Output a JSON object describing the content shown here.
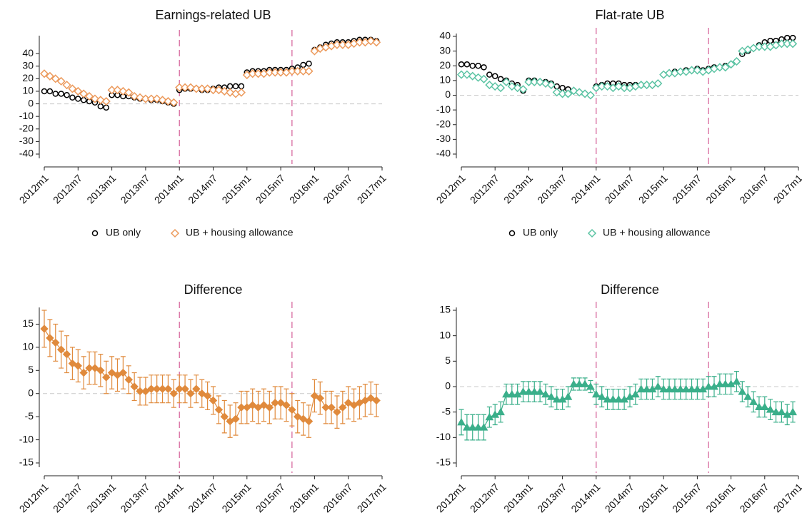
{
  "chart_data": [
    {
      "type": "scatter",
      "title": "Earnings-related UB",
      "legend": "bottom",
      "zero_line": 0,
      "vlines": [
        24,
        44
      ],
      "xlim": [
        0,
        60
      ],
      "xticks": [
        {
          "value": 0,
          "label": "2012m1"
        },
        {
          "value": 6,
          "label": "2012m7"
        },
        {
          "value": 12,
          "label": "2013m1"
        },
        {
          "value": 18,
          "label": "2013m7"
        },
        {
          "value": 24,
          "label": "2014m1"
        },
        {
          "value": 30,
          "label": "2014m7"
        },
        {
          "value": 36,
          "label": "2015m1"
        },
        {
          "value": 42,
          "label": "2015m7"
        },
        {
          "value": 48,
          "label": "2016m1"
        },
        {
          "value": 54,
          "label": "2016m7"
        },
        {
          "value": 60,
          "label": "2017m1"
        }
      ],
      "ylim": [
        -40,
        52
      ],
      "yticks": [
        -40,
        -30,
        -20,
        -10,
        0,
        10,
        20,
        30,
        40
      ],
      "x": [
        0,
        1,
        2,
        3,
        4,
        5,
        6,
        7,
        8,
        9,
        10,
        11,
        12,
        13,
        14,
        15,
        16,
        17,
        18,
        19,
        20,
        21,
        22,
        23,
        24,
        25,
        26,
        27,
        28,
        29,
        30,
        31,
        32,
        33,
        34,
        35,
        36,
        37,
        38,
        39,
        40,
        41,
        42,
        43,
        44,
        45,
        46,
        47,
        48,
        49,
        50,
        51,
        52,
        53,
        54,
        55,
        56,
        57,
        58,
        59
      ],
      "series": [
        {
          "name": "UB only",
          "color": "#000000",
          "marker": "circle",
          "filled": false,
          "values": [
            10,
            10,
            8,
            8,
            7,
            5,
            4,
            3,
            2,
            1,
            -2,
            -3,
            7,
            7,
            6,
            6,
            5,
            4,
            4,
            3,
            3,
            2,
            1,
            0,
            11,
            12,
            12,
            12,
            11,
            11,
            12,
            13,
            13,
            14,
            14,
            14,
            25,
            26,
            26,
            26,
            27,
            27,
            27,
            27,
            28,
            29,
            31,
            32,
            43,
            45,
            47,
            48,
            49,
            49,
            49,
            50,
            51,
            51,
            51,
            50
          ]
        },
        {
          "name": "UB + housing allowance",
          "color": "#ec9a5c",
          "marker": "diamond",
          "filled": false,
          "values": [
            24,
            22,
            20,
            18,
            15,
            12,
            10,
            8,
            6,
            4,
            3,
            2,
            11,
            11,
            10,
            9,
            6,
            5,
            4,
            4,
            4,
            3,
            2,
            1,
            13,
            13,
            13,
            12,
            12,
            12,
            11,
            11,
            10,
            9,
            8,
            9,
            23,
            24,
            24,
            24,
            25,
            25,
            25,
            25,
            26,
            26,
            26,
            26,
            42,
            44,
            45,
            46,
            47,
            47,
            47,
            48,
            49,
            49,
            50,
            49
          ]
        }
      ]
    },
    {
      "type": "scatter",
      "title": "Flat-rate UB",
      "legend": "bottom",
      "zero_line": 0,
      "vlines": [
        24,
        44
      ],
      "xlim": [
        0,
        60
      ],
      "xticks": [
        {
          "value": 0,
          "label": "2012m1"
        },
        {
          "value": 6,
          "label": "2012m7"
        },
        {
          "value": 12,
          "label": "2013m1"
        },
        {
          "value": 18,
          "label": "2013m7"
        },
        {
          "value": 24,
          "label": "2014m1"
        },
        {
          "value": 30,
          "label": "2014m7"
        },
        {
          "value": 36,
          "label": "2015m1"
        },
        {
          "value": 42,
          "label": "2015m7"
        },
        {
          "value": 48,
          "label": "2016m1"
        },
        {
          "value": 54,
          "label": "2016m7"
        },
        {
          "value": 60,
          "label": "2017m1"
        }
      ],
      "ylim": [
        -40,
        40
      ],
      "yticks": [
        -40,
        -30,
        -20,
        -10,
        0,
        10,
        20,
        30,
        40
      ],
      "x": [
        0,
        1,
        2,
        3,
        4,
        5,
        6,
        7,
        8,
        9,
        10,
        11,
        12,
        13,
        14,
        15,
        16,
        17,
        18,
        19,
        20,
        21,
        22,
        23,
        24,
        25,
        26,
        27,
        28,
        29,
        30,
        31,
        32,
        33,
        34,
        35,
        36,
        37,
        38,
        39,
        40,
        41,
        42,
        43,
        44,
        45,
        46,
        47,
        48,
        49,
        50,
        51,
        52,
        53,
        54,
        55,
        56,
        57,
        58,
        59
      ],
      "series": [
        {
          "name": "UB only",
          "color": "#000000",
          "marker": "circle",
          "filled": false,
          "values": [
            21,
            21,
            20,
            20,
            19,
            14,
            13,
            11,
            10,
            8,
            7,
            3,
            10,
            10,
            9,
            9,
            8,
            6,
            5,
            4,
            3,
            2,
            1,
            0,
            6,
            7,
            8,
            8,
            8,
            7,
            7,
            7,
            7,
            7,
            7,
            8,
            14,
            15,
            16,
            16,
            17,
            17,
            18,
            17,
            18,
            19,
            19,
            20,
            21,
            23,
            28,
            30,
            32,
            34,
            36,
            37,
            37,
            38,
            39,
            39
          ]
        },
        {
          "name": "UB + housing allowance",
          "color": "#5cc4a4",
          "marker": "diamond",
          "filled": false,
          "values": [
            14,
            14,
            13,
            12,
            11,
            7,
            6,
            5,
            9,
            6,
            5,
            4,
            9,
            9,
            9,
            8,
            7,
            2,
            1,
            1,
            3,
            2,
            1,
            0,
            5,
            6,
            6,
            5,
            6,
            5,
            5,
            6,
            7,
            7,
            7,
            8,
            14,
            15,
            15,
            16,
            16,
            17,
            17,
            16,
            17,
            18,
            19,
            19,
            21,
            23,
            30,
            31,
            32,
            33,
            33,
            33,
            34,
            35,
            35,
            35
          ]
        }
      ]
    },
    {
      "type": "errorbar",
      "title": "Difference",
      "zero_line": 0,
      "vlines": [
        24,
        44
      ],
      "xlim": [
        0,
        60
      ],
      "xticks": [
        {
          "value": 0,
          "label": "2012m1"
        },
        {
          "value": 6,
          "label": "2012m7"
        },
        {
          "value": 12,
          "label": "2013m1"
        },
        {
          "value": 18,
          "label": "2013m7"
        },
        {
          "value": 24,
          "label": "2014m1"
        },
        {
          "value": 30,
          "label": "2014m7"
        },
        {
          "value": 36,
          "label": "2015m1"
        },
        {
          "value": 42,
          "label": "2015m7"
        },
        {
          "value": 48,
          "label": "2016m1"
        },
        {
          "value": 54,
          "label": "2016m7"
        },
        {
          "value": 60,
          "label": "2017m1"
        }
      ],
      "ylim": [
        -15,
        18
      ],
      "yticks": [
        -15,
        -10,
        -5,
        0,
        5,
        10,
        15
      ],
      "x": [
        0,
        1,
        2,
        3,
        4,
        5,
        6,
        7,
        8,
        9,
        10,
        11,
        12,
        13,
        14,
        15,
        16,
        17,
        18,
        19,
        20,
        21,
        22,
        23,
        24,
        25,
        26,
        27,
        28,
        29,
        30,
        31,
        32,
        33,
        34,
        35,
        36,
        37,
        38,
        39,
        40,
        41,
        42,
        43,
        44,
        45,
        46,
        47,
        48,
        49,
        50,
        51,
        52,
        53,
        54,
        55,
        56,
        57,
        58,
        59
      ],
      "series": [
        {
          "color": "#e08a3c",
          "marker": "diamond",
          "filled": true,
          "values": [
            14,
            12,
            11,
            9.5,
            8.5,
            6.5,
            6,
            4.5,
            5.5,
            5.5,
            5,
            3.5,
            4.5,
            4,
            4.5,
            3,
            1.5,
            0.5,
            0.5,
            1,
            1,
            1,
            1,
            0,
            1,
            1,
            0,
            1,
            0,
            -0.5,
            -1.5,
            -3.5,
            -5,
            -6,
            -5.5,
            -3,
            -3,
            -2.5,
            -3,
            -2.5,
            -3,
            -2,
            -2,
            -2.5,
            -3.5,
            -5,
            -5.5,
            -6,
            -0.5,
            -1,
            -3,
            -3,
            -4,
            -3,
            -2,
            -2.5,
            -2,
            -1.5,
            -1,
            -1.5
          ],
          "errors": [
            4,
            4,
            4,
            4,
            4,
            3.5,
            3.5,
            3.5,
            3.5,
            3.5,
            3.5,
            3.5,
            3.5,
            3.5,
            3.5,
            3,
            3,
            3,
            3,
            3,
            3,
            3,
            3,
            3,
            3,
            3,
            3,
            3,
            3,
            3,
            3,
            3,
            3.5,
            3.5,
            3.5,
            3.5,
            3.5,
            3.5,
            3.5,
            3.5,
            3.5,
            3.5,
            3.5,
            3.5,
            3.5,
            3.5,
            3.5,
            3.5,
            3.5,
            3.5,
            3.5,
            3.5,
            3.5,
            3.5,
            3.5,
            3.5,
            3.5,
            3.5,
            3.5,
            3.5
          ]
        }
      ]
    },
    {
      "type": "errorbar",
      "title": "Difference",
      "zero_line": 0,
      "vlines": [
        24,
        44
      ],
      "xlim": [
        0,
        60
      ],
      "xticks": [
        {
          "value": 0,
          "label": "2012m1"
        },
        {
          "value": 6,
          "label": "2012m7"
        },
        {
          "value": 12,
          "label": "2013m1"
        },
        {
          "value": 18,
          "label": "2013m7"
        },
        {
          "value": 24,
          "label": "2014m1"
        },
        {
          "value": 30,
          "label": "2014m7"
        },
        {
          "value": 36,
          "label": "2015m1"
        },
        {
          "value": 42,
          "label": "2015m7"
        },
        {
          "value": 48,
          "label": "2016m1"
        },
        {
          "value": 54,
          "label": "2016m7"
        },
        {
          "value": 60,
          "label": "2017m1"
        }
      ],
      "ylim": [
        -15,
        15
      ],
      "yticks": [
        -15,
        -10,
        -5,
        0,
        5,
        10,
        15
      ],
      "x": [
        0,
        1,
        2,
        3,
        4,
        5,
        6,
        7,
        8,
        9,
        10,
        11,
        12,
        13,
        14,
        15,
        16,
        17,
        18,
        19,
        20,
        21,
        22,
        23,
        24,
        25,
        26,
        27,
        28,
        29,
        30,
        31,
        32,
        33,
        34,
        35,
        36,
        37,
        38,
        39,
        40,
        41,
        42,
        43,
        44,
        45,
        46,
        47,
        48,
        49,
        50,
        51,
        52,
        53,
        54,
        55,
        56,
        57,
        58,
        59
      ],
      "series": [
        {
          "color": "#3aaf8a",
          "marker": "triangle",
          "filled": true,
          "values": [
            -7,
            -8,
            -8,
            -8,
            -8,
            -6,
            -5.5,
            -5,
            -1.5,
            -1.5,
            -1.5,
            -1,
            -1,
            -1,
            -1,
            -1.5,
            -2,
            -2.5,
            -2.5,
            -2,
            0.5,
            0.5,
            0.5,
            0,
            -1.5,
            -2,
            -2.5,
            -2.5,
            -2.5,
            -2.5,
            -2,
            -1.5,
            -0.5,
            -0.5,
            -0.5,
            0,
            -0.5,
            -0.5,
            -0.5,
            -0.5,
            -0.5,
            -0.5,
            -0.5,
            -0.5,
            0,
            0,
            0.5,
            0.5,
            0.5,
            1,
            -1,
            -2,
            -3,
            -4,
            -4,
            -4.5,
            -5,
            -5,
            -5.5,
            -5
          ],
          "errors": [
            2.5,
            2.5,
            2.5,
            2.5,
            2.5,
            2,
            2,
            2,
            2,
            2,
            2,
            2,
            2,
            2,
            2,
            2,
            2,
            2,
            2,
            2,
            1.2,
            1.2,
            1.2,
            1.2,
            2,
            2,
            2,
            2,
            2,
            2,
            2,
            2,
            2,
            2,
            2,
            2,
            2,
            2,
            2,
            2,
            2,
            2,
            2,
            2,
            2,
            2,
            2,
            2,
            2,
            2,
            2,
            2,
            2,
            2,
            2,
            2,
            2,
            2,
            2,
            2
          ]
        }
      ]
    }
  ]
}
